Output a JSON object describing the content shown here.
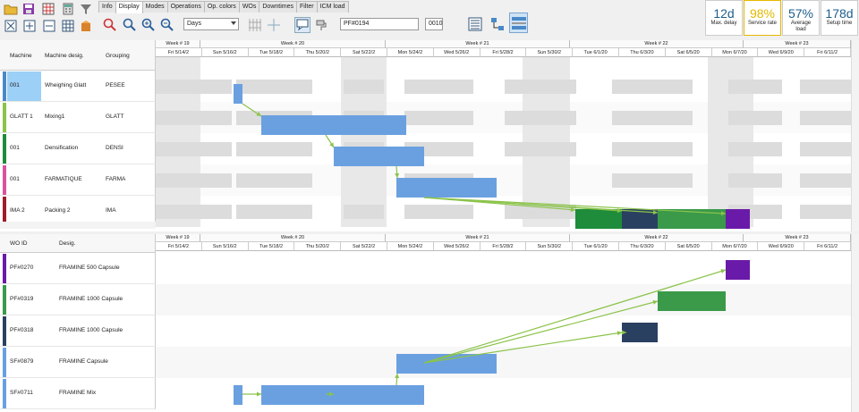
{
  "tabs": [
    "Info",
    "Display",
    "Modes",
    "Operations",
    "Op. colors",
    "WOs",
    "Downtimes",
    "Filter",
    "ICM load"
  ],
  "active_tab": "Display",
  "period_select": "Days",
  "order_input": "PF#0194",
  "op_input": "0010",
  "kpis": [
    {
      "value": "12d",
      "label": "Max. delay"
    },
    {
      "value": "98%",
      "label": "Service rate"
    },
    {
      "value": "57%",
      "label": "Average load"
    },
    {
      "value": "178d",
      "label": "Setup time"
    }
  ],
  "top_headers": {
    "machine": "Machine",
    "desig": "Machine desig.",
    "grouping": "Grouping"
  },
  "machines": [
    {
      "machine": "001",
      "desig": "Wheighing Glatt",
      "grouping": "PESEE",
      "color": "#4a89c8",
      "selected": true
    },
    {
      "machine": "GLATT 1",
      "desig": "Mixing1",
      "grouping": "GLATT",
      "color": "#8bc34a"
    },
    {
      "machine": "001",
      "desig": "Densification",
      "grouping": "DENSI",
      "color": "#1e8c3a"
    },
    {
      "machine": "001",
      "desig": "FARMATIQUE",
      "grouping": "FARMA",
      "color": "#d9539c"
    },
    {
      "machine": "IMA 2",
      "desig": "Packing 2",
      "grouping": "IMA",
      "color": "#a01c2a"
    }
  ],
  "bottom_headers": {
    "wo": "WO ID",
    "desig": "Desig."
  },
  "work_orders": [
    {
      "id": "PF#0270",
      "desig": "FRAMINE 500 Capsule",
      "color": "#6a1aa8"
    },
    {
      "id": "PF#0319",
      "desig": "FRAMINE 1000 Capsule",
      "color": "#3a9a4a"
    },
    {
      "id": "PF#0318",
      "desig": "FRAMINE 1000 Capsule",
      "color": "#2a4060"
    },
    {
      "id": "SF#0879",
      "desig": "FRAMINE Capsule",
      "color": "#6aa0e0"
    },
    {
      "id": "SF#0711",
      "desig": "FRAMINE Mix",
      "color": "#6aa0e0"
    }
  ],
  "weeks": [
    "Week # 19",
    "Week # 20",
    "Week # 21",
    "Week # 22",
    "Week # 23"
  ],
  "days": [
    "Fri 5/14/2",
    "Sun 5/16/2",
    "Tue 5/18/2",
    "Thu 5/20/2",
    "Sat 5/22/2",
    "Mon 5/24/2",
    "Wed 5/26/2",
    "Fri 5/28/2",
    "Sun 5/30/2",
    "Tue 6/1/20",
    "Thu 6/3/20",
    "Sat 6/5/20",
    "Mon 6/7/20",
    "Wed 6/9/20",
    "Fri 6/11/2"
  ]
}
